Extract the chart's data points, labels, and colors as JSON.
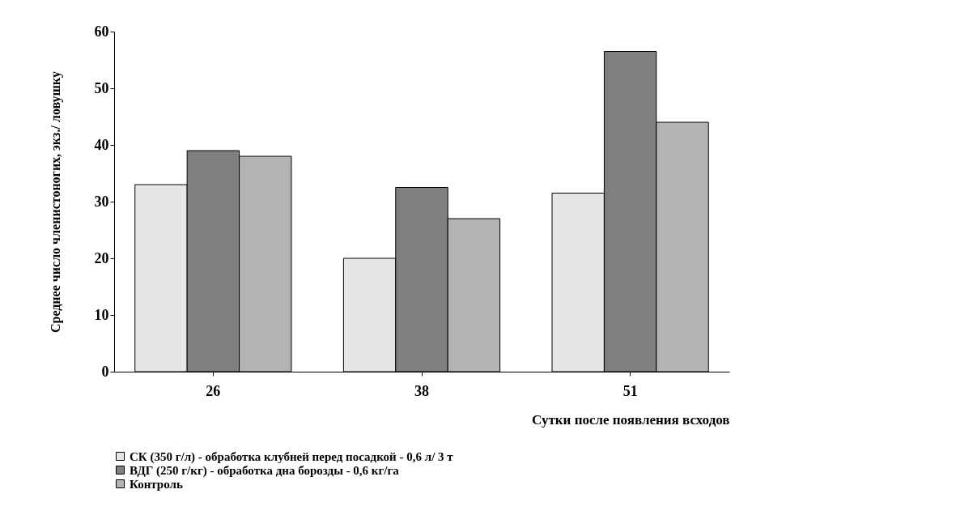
{
  "chart_data": {
    "type": "bar",
    "xlabel": "Сутки после появления всходов",
    "ylabel": "Среднее число членистоногих, экз./ ловушку",
    "categories": [
      "26",
      "38",
      "51"
    ],
    "series": [
      {
        "name": "СК (350 г/л) - обработка клубней перед посадкой - 0,6 л/ 3 т",
        "color": "#e6e6e6",
        "values": [
          33,
          20,
          31.5
        ]
      },
      {
        "name": "ВДГ (250 г/кг) - обработка дна борозды - 0,6 кг/га",
        "color": "#7f7f7f",
        "values": [
          39,
          32.5,
          56.5
        ]
      },
      {
        "name": "Контроль",
        "color": "#b3b3b3",
        "values": [
          38,
          27,
          44
        ]
      }
    ],
    "ylim": [
      0,
      60
    ],
    "yticks": [
      0,
      10,
      20,
      30,
      40,
      50,
      60
    ],
    "grid": false,
    "legend": "bottom"
  }
}
